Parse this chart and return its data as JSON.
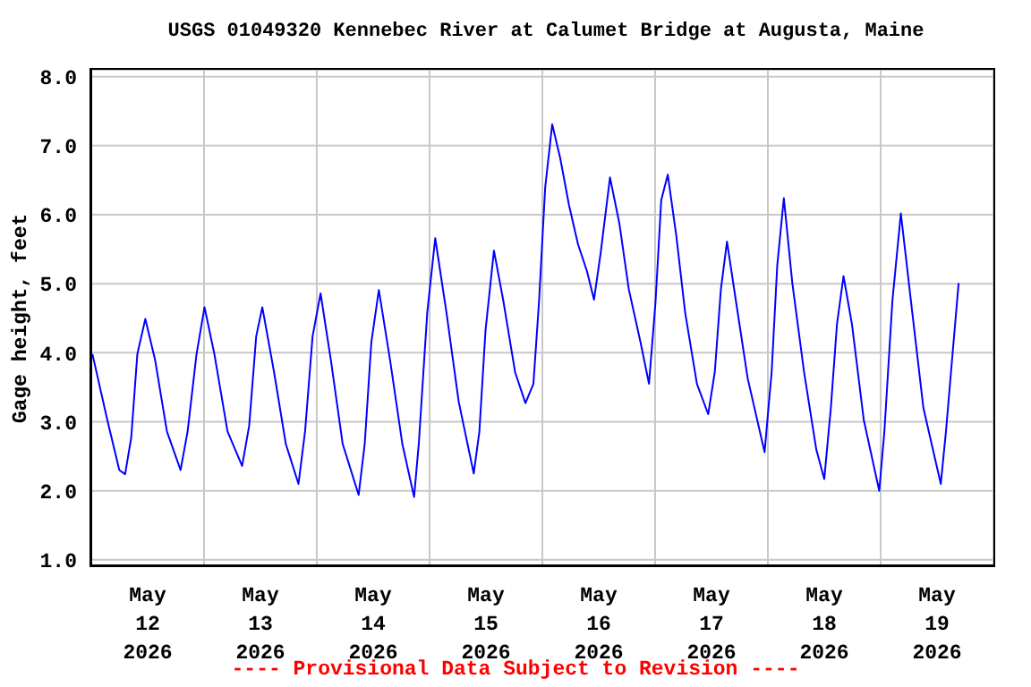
{
  "chart_data": {
    "type": "line",
    "title": "USGS 01049320 Kennebec River at Calumet Bridge at Augusta, Maine",
    "ylabel": "Gage height, feet",
    "annotations": [
      "---- Provisional Data Subject to Revision ----"
    ],
    "x": [
      "2026-05-12T00:15",
      "2026-05-12T03:24",
      "2026-05-12T05:58",
      "2026-05-12T07:12",
      "2026-05-12T08:30",
      "2026-05-12T09:48",
      "2026-05-12T11:30",
      "2026-05-12T13:36",
      "2026-05-12T16:06",
      "2026-05-12T19:00",
      "2026-05-12T20:30",
      "2026-05-12T22:24",
      "2026-05-13T00:06",
      "2026-05-13T02:12",
      "2026-05-13T05:00",
      "2026-05-13T08:06",
      "2026-05-13T09:36",
      "2026-05-13T11:06",
      "2026-05-13T12:24",
      "2026-05-13T14:54",
      "2026-05-13T17:24",
      "2026-05-13T20:06",
      "2026-05-13T21:30",
      "2026-05-13T23:06",
      "2026-05-14T00:48",
      "2026-05-14T03:00",
      "2026-05-14T05:30",
      "2026-05-14T08:54",
      "2026-05-14T10:12",
      "2026-05-14T11:36",
      "2026-05-14T13:12",
      "2026-05-14T15:36",
      "2026-05-14T18:12",
      "2026-05-14T20:42",
      "2026-05-14T21:42",
      "2026-05-14T23:30",
      "2026-05-15T01:12",
      "2026-05-15T03:36",
      "2026-05-15T06:12",
      "2026-05-15T09:24",
      "2026-05-15T10:36",
      "2026-05-15T11:54",
      "2026-05-15T13:42",
      "2026-05-15T15:42",
      "2026-05-15T18:12",
      "2026-05-15T20:24",
      "2026-05-15T22:06",
      "2026-05-15T23:18",
      "2026-05-16T00:36",
      "2026-05-16T02:06",
      "2026-05-16T03:48",
      "2026-05-16T05:42",
      "2026-05-16T07:36",
      "2026-05-16T09:30",
      "2026-05-16T11:00",
      "2026-05-16T12:24",
      "2026-05-16T14:24",
      "2026-05-16T16:24",
      "2026-05-16T18:24",
      "2026-05-16T20:54",
      "2026-05-16T22:42",
      "2026-05-17T00:06",
      "2026-05-17T01:18",
      "2026-05-17T02:42",
      "2026-05-17T04:30",
      "2026-05-17T06:24",
      "2026-05-17T08:54",
      "2026-05-17T11:18",
      "2026-05-17T12:42",
      "2026-05-17T14:00",
      "2026-05-17T15:18",
      "2026-05-17T17:12",
      "2026-05-17T19:42",
      "2026-05-17T23:18",
      "2026-05-18T00:48",
      "2026-05-18T02:00",
      "2026-05-18T03:24",
      "2026-05-18T05:12",
      "2026-05-18T07:42",
      "2026-05-18T10:18",
      "2026-05-18T12:00",
      "2026-05-18T13:24",
      "2026-05-18T14:42",
      "2026-05-18T16:06",
      "2026-05-18T17:54",
      "2026-05-18T20:24",
      "2026-05-18T23:42",
      "2026-05-19T00:48",
      "2026-05-19T02:30",
      "2026-05-19T04:18",
      "2026-05-19T06:36",
      "2026-05-19T09:06",
      "2026-05-19T12:48",
      "2026-05-19T13:54",
      "2026-05-19T15:24",
      "2026-05-19T16:36"
    ],
    "series": [
      {
        "color": "#0000ff",
        "values": [
          3.98,
          3.03,
          2.3,
          2.24,
          2.77,
          3.98,
          4.49,
          3.89,
          2.86,
          2.3,
          2.86,
          3.98,
          4.66,
          3.98,
          2.86,
          2.36,
          2.94,
          4.24,
          4.66,
          3.72,
          2.68,
          2.1,
          2.86,
          4.24,
          4.86,
          3.89,
          2.68,
          1.94,
          2.68,
          4.15,
          4.91,
          3.89,
          2.68,
          1.91,
          2.68,
          4.58,
          5.66,
          4.58,
          3.29,
          2.25,
          2.86,
          4.32,
          5.48,
          4.75,
          3.72,
          3.27,
          3.55,
          4.75,
          6.39,
          7.31,
          6.82,
          6.13,
          5.57,
          5.18,
          4.77,
          5.44,
          6.54,
          5.87,
          4.92,
          4.15,
          3.55,
          4.75,
          6.21,
          6.58,
          5.7,
          4.58,
          3.55,
          3.11,
          3.72,
          4.92,
          5.61,
          4.75,
          3.63,
          2.56,
          3.72,
          5.27,
          6.24,
          5.01,
          3.72,
          2.6,
          2.17,
          3.2,
          4.41,
          5.11,
          4.41,
          3.03,
          2.0,
          2.86,
          4.75,
          6.02,
          4.66,
          3.2,
          2.1,
          2.86,
          4.06,
          5.01
        ]
      }
    ],
    "xlim": [
      "2026-05-12T00:00",
      "2026-05-20T00:00"
    ],
    "xticks": [
      {
        "value": "2026-05-12T00:00",
        "label": null
      },
      {
        "value": "2026-05-12T12:00",
        "label": "May 12 2026"
      },
      {
        "value": "2026-05-13T00:00",
        "label": null
      },
      {
        "value": "2026-05-13T12:00",
        "label": "May 13 2026"
      },
      {
        "value": "2026-05-14T00:00",
        "label": null
      },
      {
        "value": "2026-05-14T12:00",
        "label": "May 14 2026"
      },
      {
        "value": "2026-05-15T00:00",
        "label": null
      },
      {
        "value": "2026-05-15T12:00",
        "label": "May 15 2026"
      },
      {
        "value": "2026-05-16T00:00",
        "label": null
      },
      {
        "value": "2026-05-16T12:00",
        "label": "May 16 2026"
      },
      {
        "value": "2026-05-17T00:00",
        "label": null
      },
      {
        "value": "2026-05-17T12:00",
        "label": "May 17 2026"
      },
      {
        "value": "2026-05-18T00:00",
        "label": null
      },
      {
        "value": "2026-05-18T12:00",
        "label": "May 18 2026"
      },
      {
        "value": "2026-05-19T00:00",
        "label": null
      },
      {
        "value": "2026-05-19T12:00",
        "label": "May 19 2026"
      },
      {
        "value": "2026-05-20T00:00",
        "label": null
      }
    ],
    "ylim": [
      0.92,
      8.1
    ],
    "yticks": [
      {
        "value": 1,
        "label": "1.0"
      },
      {
        "value": 2,
        "label": "2.0"
      },
      {
        "value": 3,
        "label": "3.0"
      },
      {
        "value": 4,
        "label": "4.0"
      },
      {
        "value": 5,
        "label": "5.0"
      },
      {
        "value": 6,
        "label": "6.0"
      },
      {
        "value": 7,
        "label": "7.0"
      },
      {
        "value": 8,
        "label": "8.0"
      }
    ],
    "grid": true,
    "marker": "none",
    "line_style": "solid"
  }
}
